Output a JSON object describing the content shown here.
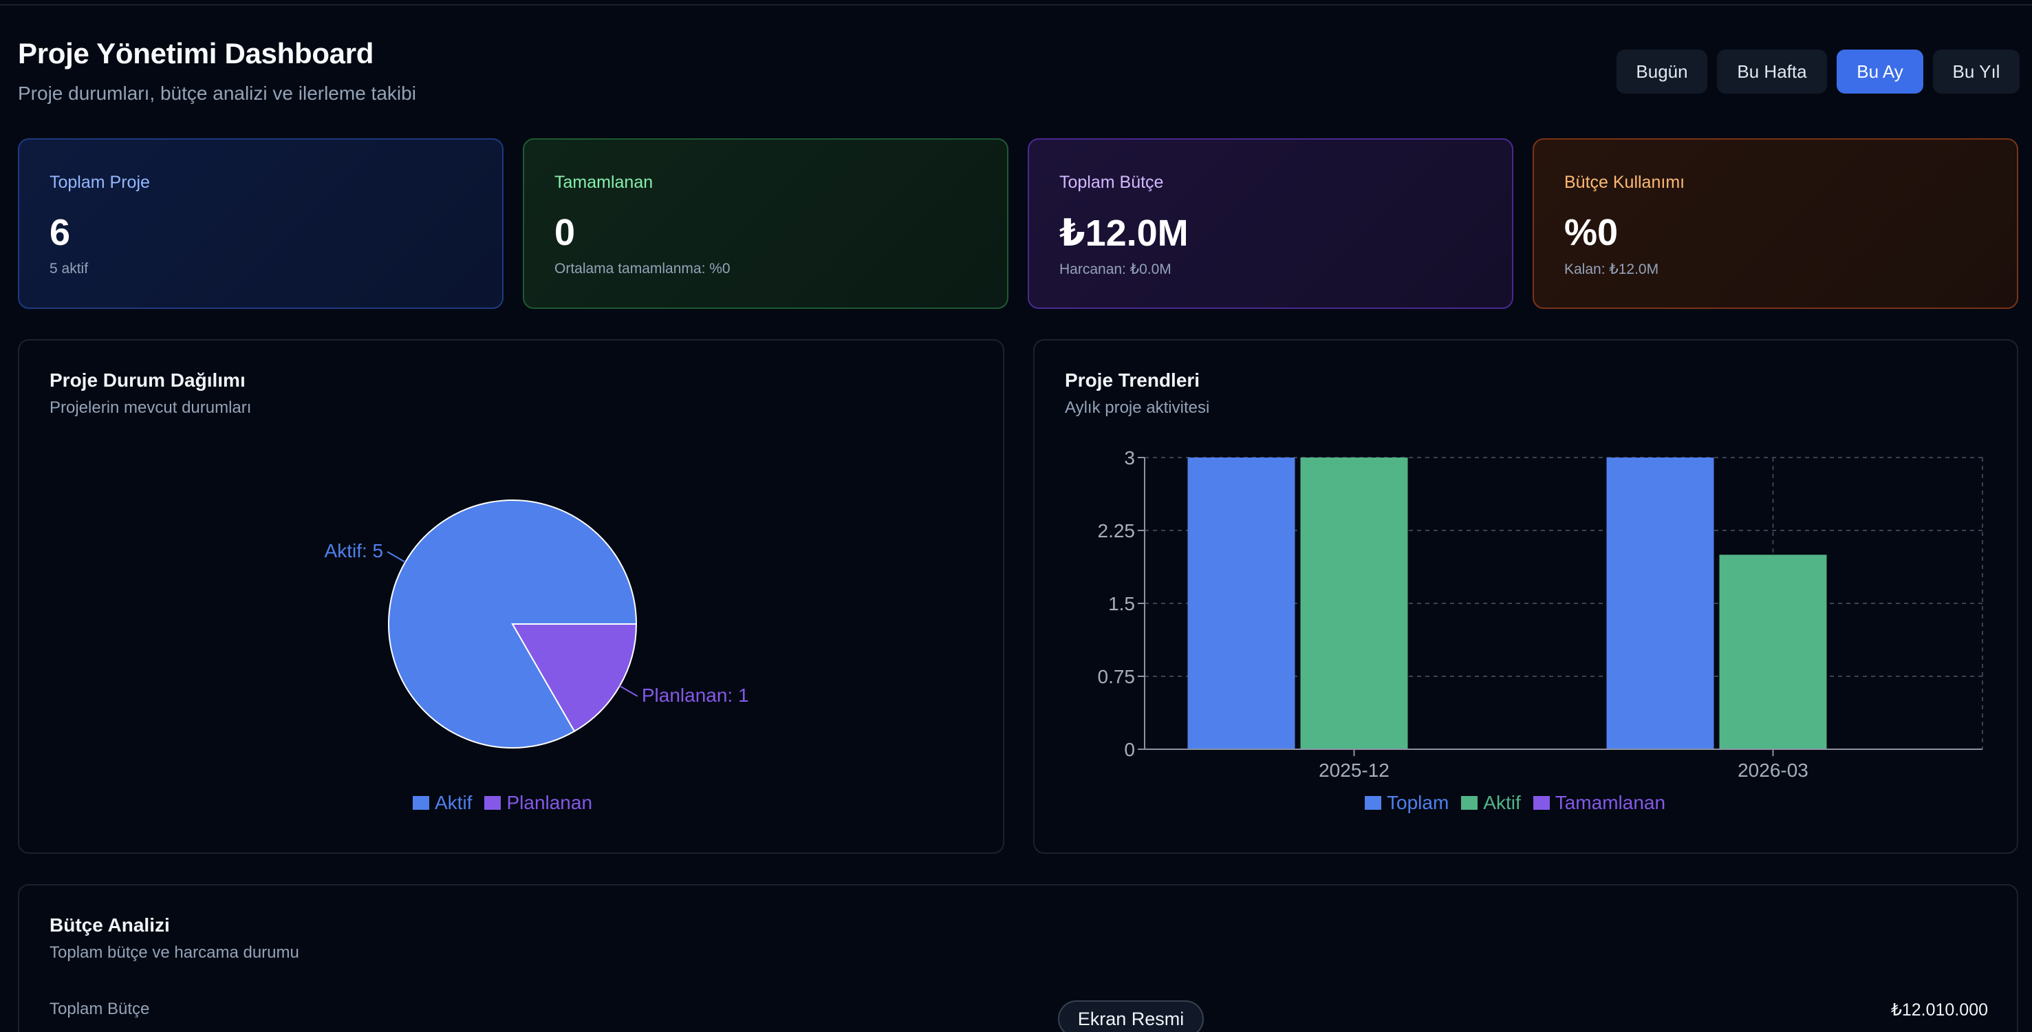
{
  "header": {
    "title": "Proje Yönetimi Dashboard",
    "subtitle": "Proje durumları, bütçe analizi ve ilerleme takibi",
    "ranges": [
      {
        "label": "Bugün",
        "active": false
      },
      {
        "label": "Bu Hafta",
        "active": false
      },
      {
        "label": "Bu Ay",
        "active": true
      },
      {
        "label": "Bu Yıl",
        "active": false
      }
    ]
  },
  "stats": [
    {
      "label": "Toplam Proje",
      "value": "6",
      "sub": "5 aktif",
      "accent": "#93b8ff"
    },
    {
      "label": "Tamamlanan",
      "value": "0",
      "sub": "Ortalama tamamlanma: %0",
      "accent": "#86efac"
    },
    {
      "label": "Toplam Bütçe",
      "value": "₺12.0M",
      "sub": "Harcanan: ₺0.0M",
      "accent": "#d3b9ff"
    },
    {
      "label": "Bütçe Kullanımı",
      "value": "%0",
      "sub": "Kalan: ₺12.0M",
      "accent": "#fdba74"
    }
  ],
  "status_panel": {
    "title": "Proje Durum Dağılımı",
    "subtitle": "Projelerin mevcut durumları"
  },
  "trend_panel": {
    "title": "Proje Trendleri",
    "subtitle": "Aylık proje aktivitesi"
  },
  "budget_panel": {
    "title": "Bütçe Analizi",
    "subtitle": "Toplam bütçe ve harcama durumu",
    "total_label": "Toplam Bütçe",
    "total_value": "₺12.010.000"
  },
  "screenshot_button": "Ekran Resmi",
  "colors": {
    "blue": "#4f80ec",
    "green": "#52b587",
    "purple": "#8459e8"
  },
  "chart_data": [
    {
      "type": "pie",
      "slices": [
        {
          "name": "Aktif",
          "value": 5,
          "label": "Aktif: 5",
          "color": "#4f80ec"
        },
        {
          "name": "Planlanan",
          "value": 1,
          "label": "Planlanan: 1",
          "color": "#8459e8"
        }
      ],
      "legend": [
        "Aktif",
        "Planlanan"
      ],
      "legend_position": "bottom"
    },
    {
      "type": "bar",
      "categories": [
        "2025-12",
        "2026-03"
      ],
      "series": [
        {
          "name": "Toplam",
          "values": [
            3,
            3
          ],
          "color": "#4f80ec"
        },
        {
          "name": "Aktif",
          "values": [
            3,
            2
          ],
          "color": "#52b587"
        },
        {
          "name": "Tamamlanan",
          "values": [
            0,
            0
          ],
          "color": "#8459e8"
        }
      ],
      "ylim": [
        0,
        3
      ],
      "yticks": [
        "0",
        "0.75",
        "1.5",
        "2.25",
        "3"
      ],
      "grid": true,
      "legend_position": "bottom"
    }
  ]
}
